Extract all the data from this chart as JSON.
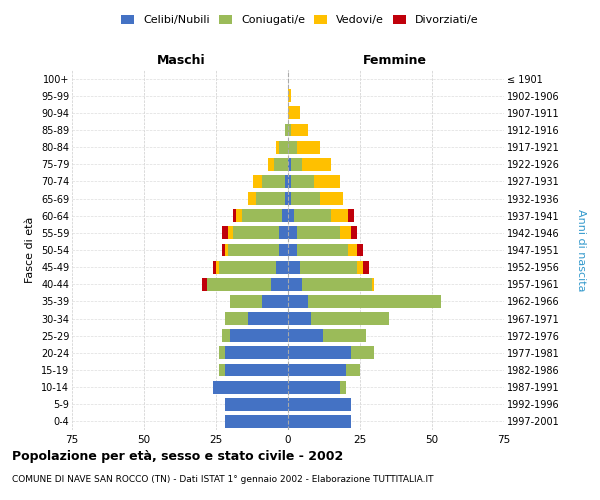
{
  "age_groups": [
    "100+",
    "95-99",
    "90-94",
    "85-89",
    "80-84",
    "75-79",
    "70-74",
    "65-69",
    "60-64",
    "55-59",
    "50-54",
    "45-49",
    "40-44",
    "35-39",
    "30-34",
    "25-29",
    "20-24",
    "15-19",
    "10-14",
    "5-9",
    "0-4"
  ],
  "year_labels": [
    "≤ 1901",
    "1902-1906",
    "1907-1911",
    "1912-1916",
    "1917-1921",
    "1922-1926",
    "1927-1931",
    "1932-1936",
    "1937-1941",
    "1942-1946",
    "1947-1951",
    "1952-1956",
    "1957-1961",
    "1962-1966",
    "1967-1971",
    "1972-1976",
    "1977-1981",
    "1982-1986",
    "1987-1991",
    "1992-1996",
    "1997-2001"
  ],
  "males": {
    "celibi": [
      0,
      0,
      0,
      0,
      0,
      0,
      1,
      1,
      2,
      3,
      3,
      4,
      6,
      9,
      14,
      20,
      22,
      22,
      26,
      22,
      22
    ],
    "coniugati": [
      0,
      0,
      0,
      1,
      3,
      5,
      8,
      10,
      14,
      16,
      18,
      20,
      22,
      11,
      8,
      3,
      2,
      2,
      0,
      0,
      0
    ],
    "vedovi": [
      0,
      0,
      0,
      0,
      1,
      2,
      3,
      3,
      2,
      2,
      1,
      1,
      0,
      0,
      0,
      0,
      0,
      0,
      0,
      0,
      0
    ],
    "divorziati": [
      0,
      0,
      0,
      0,
      0,
      0,
      0,
      0,
      1,
      2,
      1,
      1,
      2,
      0,
      0,
      0,
      0,
      0,
      0,
      0,
      0
    ]
  },
  "females": {
    "nubili": [
      0,
      0,
      0,
      0,
      0,
      1,
      1,
      1,
      2,
      3,
      3,
      4,
      5,
      7,
      8,
      12,
      22,
      20,
      18,
      22,
      22
    ],
    "coniugate": [
      0,
      0,
      0,
      1,
      3,
      4,
      8,
      10,
      13,
      15,
      18,
      20,
      24,
      46,
      27,
      15,
      8,
      5,
      2,
      0,
      0
    ],
    "vedove": [
      0,
      1,
      4,
      6,
      8,
      10,
      9,
      8,
      6,
      4,
      3,
      2,
      1,
      0,
      0,
      0,
      0,
      0,
      0,
      0,
      0
    ],
    "divorziate": [
      0,
      0,
      0,
      0,
      0,
      0,
      0,
      0,
      2,
      2,
      2,
      2,
      0,
      0,
      0,
      0,
      0,
      0,
      0,
      0,
      0
    ]
  },
  "colors": {
    "celibi": "#4472C4",
    "coniugati": "#9BBB59",
    "vedovi": "#FFC000",
    "divorziati": "#C0000B"
  },
  "xlim": 75,
  "title": "Popolazione per età, sesso e stato civile - 2002",
  "subtitle": "COMUNE DI NAVE SAN ROCCO (TN) - Dati ISTAT 1° gennaio 2002 - Elaborazione TUTTITALIA.IT",
  "ylabel_left": "Fasce di età",
  "ylabel_right": "Anni di nascita",
  "header_left": "Maschi",
  "header_right": "Femmine"
}
